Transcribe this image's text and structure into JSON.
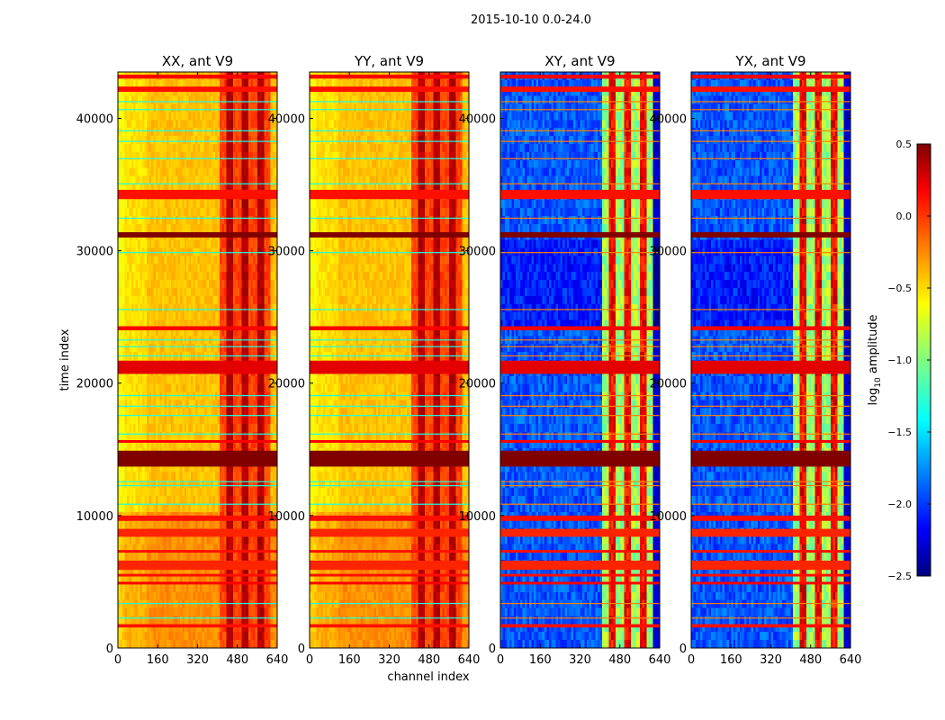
{
  "figure_title": "2015-10-10 0.0-24.0",
  "chart_data": {
    "type": "heatmap",
    "title": "2015-10-10 0.0-24.0",
    "xlabel": "channel index",
    "ylabel": "time index",
    "xlim": [
      0,
      640
    ],
    "ylim": [
      0,
      43500
    ],
    "xticks": [
      0,
      160,
      320,
      480,
      640
    ],
    "yticks": [
      0,
      10000,
      20000,
      30000,
      40000
    ],
    "panels": [
      {
        "title": "XX, ant V9",
        "style": "auto",
        "xtick_labels": [
          "0",
          "160",
          "320",
          "480",
          "640"
        ],
        "ytick_labels": [
          "0",
          "10000",
          "20000",
          "30000",
          "40000"
        ]
      },
      {
        "title": "YY, ant V9",
        "style": "auto",
        "xtick_labels": [
          "0",
          "160",
          "320",
          "480",
          "640"
        ],
        "ytick_labels": [
          "0",
          "10000",
          "20000",
          "30000",
          "40000"
        ]
      },
      {
        "title": "XY, ant V9",
        "style": "cross",
        "xtick_labels": [
          "0",
          "160",
          "320",
          "480",
          "640"
        ],
        "ytick_labels": [
          "0",
          "10000",
          "20000",
          "30000",
          "40000"
        ]
      },
      {
        "title": "YX, ant V9",
        "style": "cross",
        "xtick_labels": [
          "0",
          "160",
          "320",
          "480",
          "640"
        ],
        "ytick_labels": [
          "0",
          "10000",
          "20000",
          "30000",
          "40000"
        ]
      }
    ],
    "colorbar": {
      "label": "log10 amplitude",
      "label_prefix": "log",
      "label_sub": "10",
      "label_suffix": " amplitude",
      "range": [
        -2.5,
        0.5
      ],
      "ticks": [
        0.5,
        0.0,
        -0.5,
        -1.0,
        -1.5,
        -2.0,
        -2.5
      ],
      "tick_labels": [
        "0.5",
        "0.0",
        "−0.5",
        "−1.0",
        "−1.5",
        "−2.0",
        "−2.5"
      ],
      "colormap": "jet"
    }
  }
}
